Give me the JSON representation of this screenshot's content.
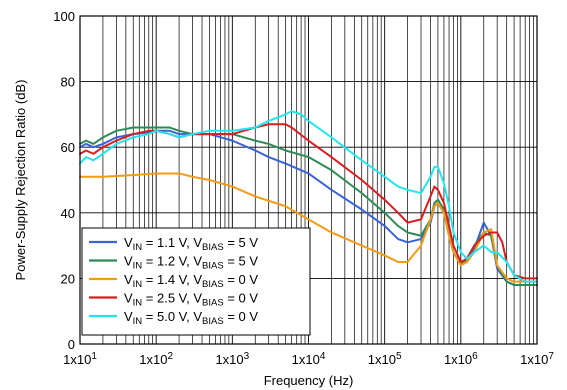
{
  "chart_data": {
    "type": "line",
    "xlabel": "Frequency (Hz)",
    "ylabel": "Power-Supply Rejection Ratio (dB)",
    "xscale": "log",
    "xlim": [
      10,
      10000000
    ],
    "ylim": [
      0,
      100
    ],
    "grid": true,
    "legend_placement": "bottom-left",
    "x_ticks": [
      {
        "value": 10,
        "base": "1x10",
        "exp": "1"
      },
      {
        "value": 100,
        "base": "1x10",
        "exp": "2"
      },
      {
        "value": 1000,
        "base": "1x10",
        "exp": "3"
      },
      {
        "value": 10000,
        "base": "1x10",
        "exp": "4"
      },
      {
        "value": 100000,
        "base": "1x10",
        "exp": "5"
      },
      {
        "value": 1000000,
        "base": "1x10",
        "exp": "6"
      },
      {
        "value": 10000000,
        "base": "1x10",
        "exp": "7"
      }
    ],
    "y_ticks": [
      {
        "value": 0,
        "label": "0"
      },
      {
        "value": 20,
        "label": "20"
      },
      {
        "value": 40,
        "label": "40"
      },
      {
        "value": 60,
        "label": "60"
      },
      {
        "value": 80,
        "label": "80"
      },
      {
        "value": 100,
        "label": "100"
      }
    ],
    "series": [
      {
        "legend": [
          {
            "t": "V"
          },
          {
            "t": "IN",
            "sub": true
          },
          {
            "t": " = 1.1 V, V"
          },
          {
            "t": "BIAS",
            "sub": true
          },
          {
            "t": " = 5 V"
          }
        ],
        "color": "#3a63d6",
        "points": [
          [
            10,
            60
          ],
          [
            12,
            61
          ],
          [
            15,
            60
          ],
          [
            20,
            61
          ],
          [
            30,
            63
          ],
          [
            50,
            64
          ],
          [
            80,
            64.5
          ],
          [
            100,
            65
          ],
          [
            150,
            65
          ],
          [
            200,
            64
          ],
          [
            300,
            64
          ],
          [
            500,
            64
          ],
          [
            1000,
            62
          ],
          [
            2000,
            59
          ],
          [
            3000,
            57
          ],
          [
            5000,
            55
          ],
          [
            10000,
            52
          ],
          [
            20000,
            47
          ],
          [
            50000,
            41
          ],
          [
            100000,
            36
          ],
          [
            150000,
            32
          ],
          [
            200000,
            31
          ],
          [
            300000,
            32
          ],
          [
            400000,
            37
          ],
          [
            450000,
            42
          ],
          [
            500000,
            43
          ],
          [
            600000,
            40
          ],
          [
            700000,
            33
          ],
          [
            800000,
            28
          ],
          [
            1000000,
            24
          ],
          [
            1200000,
            25
          ],
          [
            1500000,
            29
          ],
          [
            2000000,
            37
          ],
          [
            2500000,
            33
          ],
          [
            3000000,
            23
          ],
          [
            4000000,
            19
          ],
          [
            5000000,
            18
          ],
          [
            7000000,
            18
          ],
          [
            10000000,
            18
          ]
        ]
      },
      {
        "legend": [
          {
            "t": "V"
          },
          {
            "t": "IN",
            "sub": true
          },
          {
            "t": " = 1.2 V, V"
          },
          {
            "t": "BIAS",
            "sub": true
          },
          {
            "t": " = 5 V"
          }
        ],
        "color": "#2e8b57",
        "points": [
          [
            10,
            61
          ],
          [
            12,
            62
          ],
          [
            15,
            61
          ],
          [
            20,
            63
          ],
          [
            30,
            65
          ],
          [
            50,
            66
          ],
          [
            80,
            66
          ],
          [
            100,
            66
          ],
          [
            150,
            66
          ],
          [
            200,
            65
          ],
          [
            300,
            64
          ],
          [
            500,
            64
          ],
          [
            1000,
            64
          ],
          [
            2000,
            62
          ],
          [
            3000,
            61
          ],
          [
            5000,
            59
          ],
          [
            10000,
            57
          ],
          [
            20000,
            53
          ],
          [
            50000,
            46
          ],
          [
            100000,
            40
          ],
          [
            150000,
            36
          ],
          [
            200000,
            34
          ],
          [
            300000,
            33
          ],
          [
            400000,
            38
          ],
          [
            450000,
            43
          ],
          [
            500000,
            44
          ],
          [
            600000,
            41
          ],
          [
            700000,
            34
          ],
          [
            800000,
            28
          ],
          [
            1000000,
            24
          ],
          [
            1200000,
            26
          ],
          [
            1500000,
            30
          ],
          [
            2000000,
            34
          ],
          [
            2500000,
            33
          ],
          [
            3000000,
            24
          ],
          [
            4000000,
            19
          ],
          [
            5000000,
            18
          ],
          [
            7000000,
            18
          ],
          [
            10000000,
            18
          ]
        ]
      },
      {
        "legend": [
          {
            "t": "V"
          },
          {
            "t": "IN",
            "sub": true
          },
          {
            "t": " = 1.4 V, V"
          },
          {
            "t": "BIAS",
            "sub": true
          },
          {
            "t": " = 0 V"
          }
        ],
        "color": "#f39c12",
        "points": [
          [
            10,
            51
          ],
          [
            20,
            51
          ],
          [
            50,
            51.5
          ],
          [
            100,
            52
          ],
          [
            200,
            52
          ],
          [
            300,
            51
          ],
          [
            500,
            50
          ],
          [
            1000,
            48
          ],
          [
            2000,
            45
          ],
          [
            5000,
            42
          ],
          [
            10000,
            38
          ],
          [
            20000,
            34
          ],
          [
            50000,
            30
          ],
          [
            100000,
            27
          ],
          [
            150000,
            25
          ],
          [
            200000,
            25
          ],
          [
            300000,
            30
          ],
          [
            400000,
            38
          ],
          [
            450000,
            42
          ],
          [
            500000,
            43
          ],
          [
            600000,
            40
          ],
          [
            700000,
            33
          ],
          [
            800000,
            28
          ],
          [
            1000000,
            24
          ],
          [
            1200000,
            25
          ],
          [
            1500000,
            28
          ],
          [
            2000000,
            34
          ],
          [
            2500000,
            35
          ],
          [
            3000000,
            24
          ],
          [
            4000000,
            20
          ],
          [
            5000000,
            19
          ],
          [
            7000000,
            19
          ],
          [
            10000000,
            19
          ]
        ]
      },
      {
        "legend": [
          {
            "t": "V"
          },
          {
            "t": "IN",
            "sub": true
          },
          {
            "t": " = 2.5 V, V"
          },
          {
            "t": "BIAS",
            "sub": true
          },
          {
            "t": " = 0 V"
          }
        ],
        "color": "#d61f1f",
        "points": [
          [
            10,
            58
          ],
          [
            12,
            59
          ],
          [
            15,
            58
          ],
          [
            20,
            60
          ],
          [
            30,
            62
          ],
          [
            50,
            64
          ],
          [
            80,
            65
          ],
          [
            100,
            65
          ],
          [
            150,
            64
          ],
          [
            200,
            63
          ],
          [
            300,
            64
          ],
          [
            500,
            64
          ],
          [
            1000,
            64
          ],
          [
            2000,
            66
          ],
          [
            3000,
            67
          ],
          [
            5000,
            67
          ],
          [
            6000,
            66
          ],
          [
            10000,
            62
          ],
          [
            20000,
            57
          ],
          [
            50000,
            50
          ],
          [
            100000,
            44
          ],
          [
            150000,
            40
          ],
          [
            200000,
            37
          ],
          [
            300000,
            38
          ],
          [
            400000,
            45
          ],
          [
            450000,
            48
          ],
          [
            500000,
            47
          ],
          [
            600000,
            43
          ],
          [
            700000,
            36
          ],
          [
            800000,
            30
          ],
          [
            1000000,
            25
          ],
          [
            1200000,
            26
          ],
          [
            1500000,
            30
          ],
          [
            2000000,
            33
          ],
          [
            2500000,
            34
          ],
          [
            3000000,
            34
          ],
          [
            3500000,
            31
          ],
          [
            4000000,
            25
          ],
          [
            5000000,
            21
          ],
          [
            7000000,
            20
          ],
          [
            10000000,
            20
          ]
        ]
      },
      {
        "legend": [
          {
            "t": "V"
          },
          {
            "t": "IN",
            "sub": true
          },
          {
            "t": " = 5.0 V, V"
          },
          {
            "t": "BIAS",
            "sub": true
          },
          {
            "t": " = 0 V"
          }
        ],
        "color": "#22e5f0",
        "points": [
          [
            10,
            55
          ],
          [
            12,
            57
          ],
          [
            15,
            56
          ],
          [
            20,
            58
          ],
          [
            30,
            61
          ],
          [
            50,
            63
          ],
          [
            80,
            64
          ],
          [
            100,
            65
          ],
          [
            150,
            64
          ],
          [
            200,
            63
          ],
          [
            300,
            64
          ],
          [
            500,
            65
          ],
          [
            1000,
            65
          ],
          [
            2000,
            66
          ],
          [
            3000,
            68
          ],
          [
            5000,
            70
          ],
          [
            6000,
            71
          ],
          [
            8000,
            70
          ],
          [
            10000,
            68
          ],
          [
            20000,
            63
          ],
          [
            50000,
            56
          ],
          [
            100000,
            51
          ],
          [
            150000,
            48
          ],
          [
            200000,
            47
          ],
          [
            300000,
            46
          ],
          [
            400000,
            51
          ],
          [
            450000,
            54
          ],
          [
            500000,
            54
          ],
          [
            600000,
            49
          ],
          [
            700000,
            42
          ],
          [
            800000,
            34
          ],
          [
            1000000,
            28
          ],
          [
            1200000,
            26
          ],
          [
            1500000,
            28
          ],
          [
            2000000,
            30
          ],
          [
            2500000,
            28
          ],
          [
            3000000,
            28
          ],
          [
            4000000,
            25
          ],
          [
            5000000,
            21
          ],
          [
            7000000,
            19
          ],
          [
            10000000,
            19
          ]
        ]
      }
    ]
  }
}
